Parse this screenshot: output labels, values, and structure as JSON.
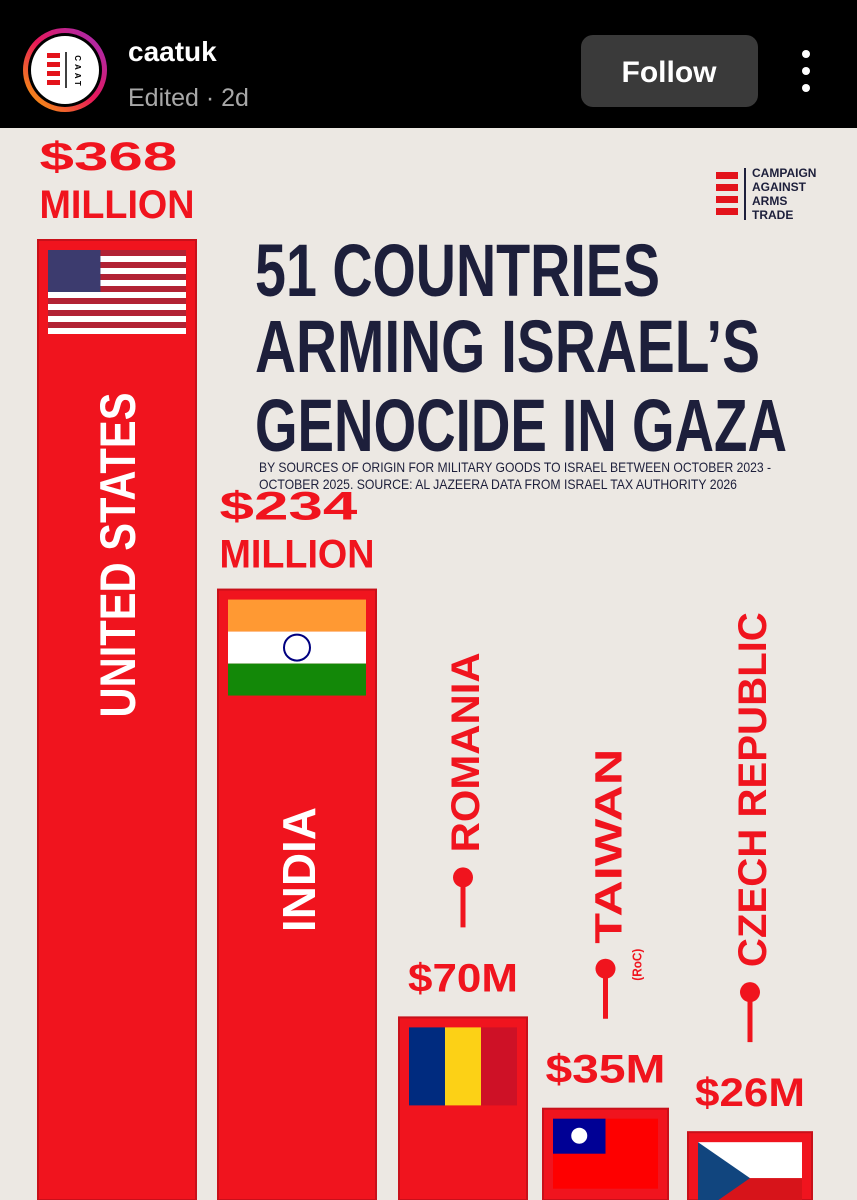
{
  "header": {
    "username": "caatuk",
    "meta": "Edited · 2d",
    "button": "Follow",
    "avatar_text": "CAAT"
  },
  "chart_data": {
    "type": "bar",
    "logo_text": [
      "CAMPAIGN",
      "AGAINST",
      "ARMS",
      "TRADE"
    ],
    "title": [
      "51 COUNTRIES",
      "ARMING ISRAEL’S",
      "GENOCIDE IN GAZA"
    ],
    "subtitle": [
      "BY SOURCES OF ORIGIN FOR MILITARY GOODS TO ISRAEL BETWEEN OCTOBER 2023 -",
      "OCTOBER 2025. SOURCE: AL JAZEERA DATA FROM ISRAEL TAX AUTHORITY 2026"
    ],
    "categories": [
      "UNITED STATES",
      "INDIA",
      "ROMANIA",
      "TAIWAN",
      "CZECH REPUBLIC"
    ],
    "annotation": "(RoC)",
    "values": [
      368,
      234,
      70,
      35,
      26
    ],
    "value_labels": [
      "$368 MILLION",
      "$234 MILLION",
      "$70M",
      "$35M",
      "$26M"
    ],
    "color": "#f0141e"
  }
}
